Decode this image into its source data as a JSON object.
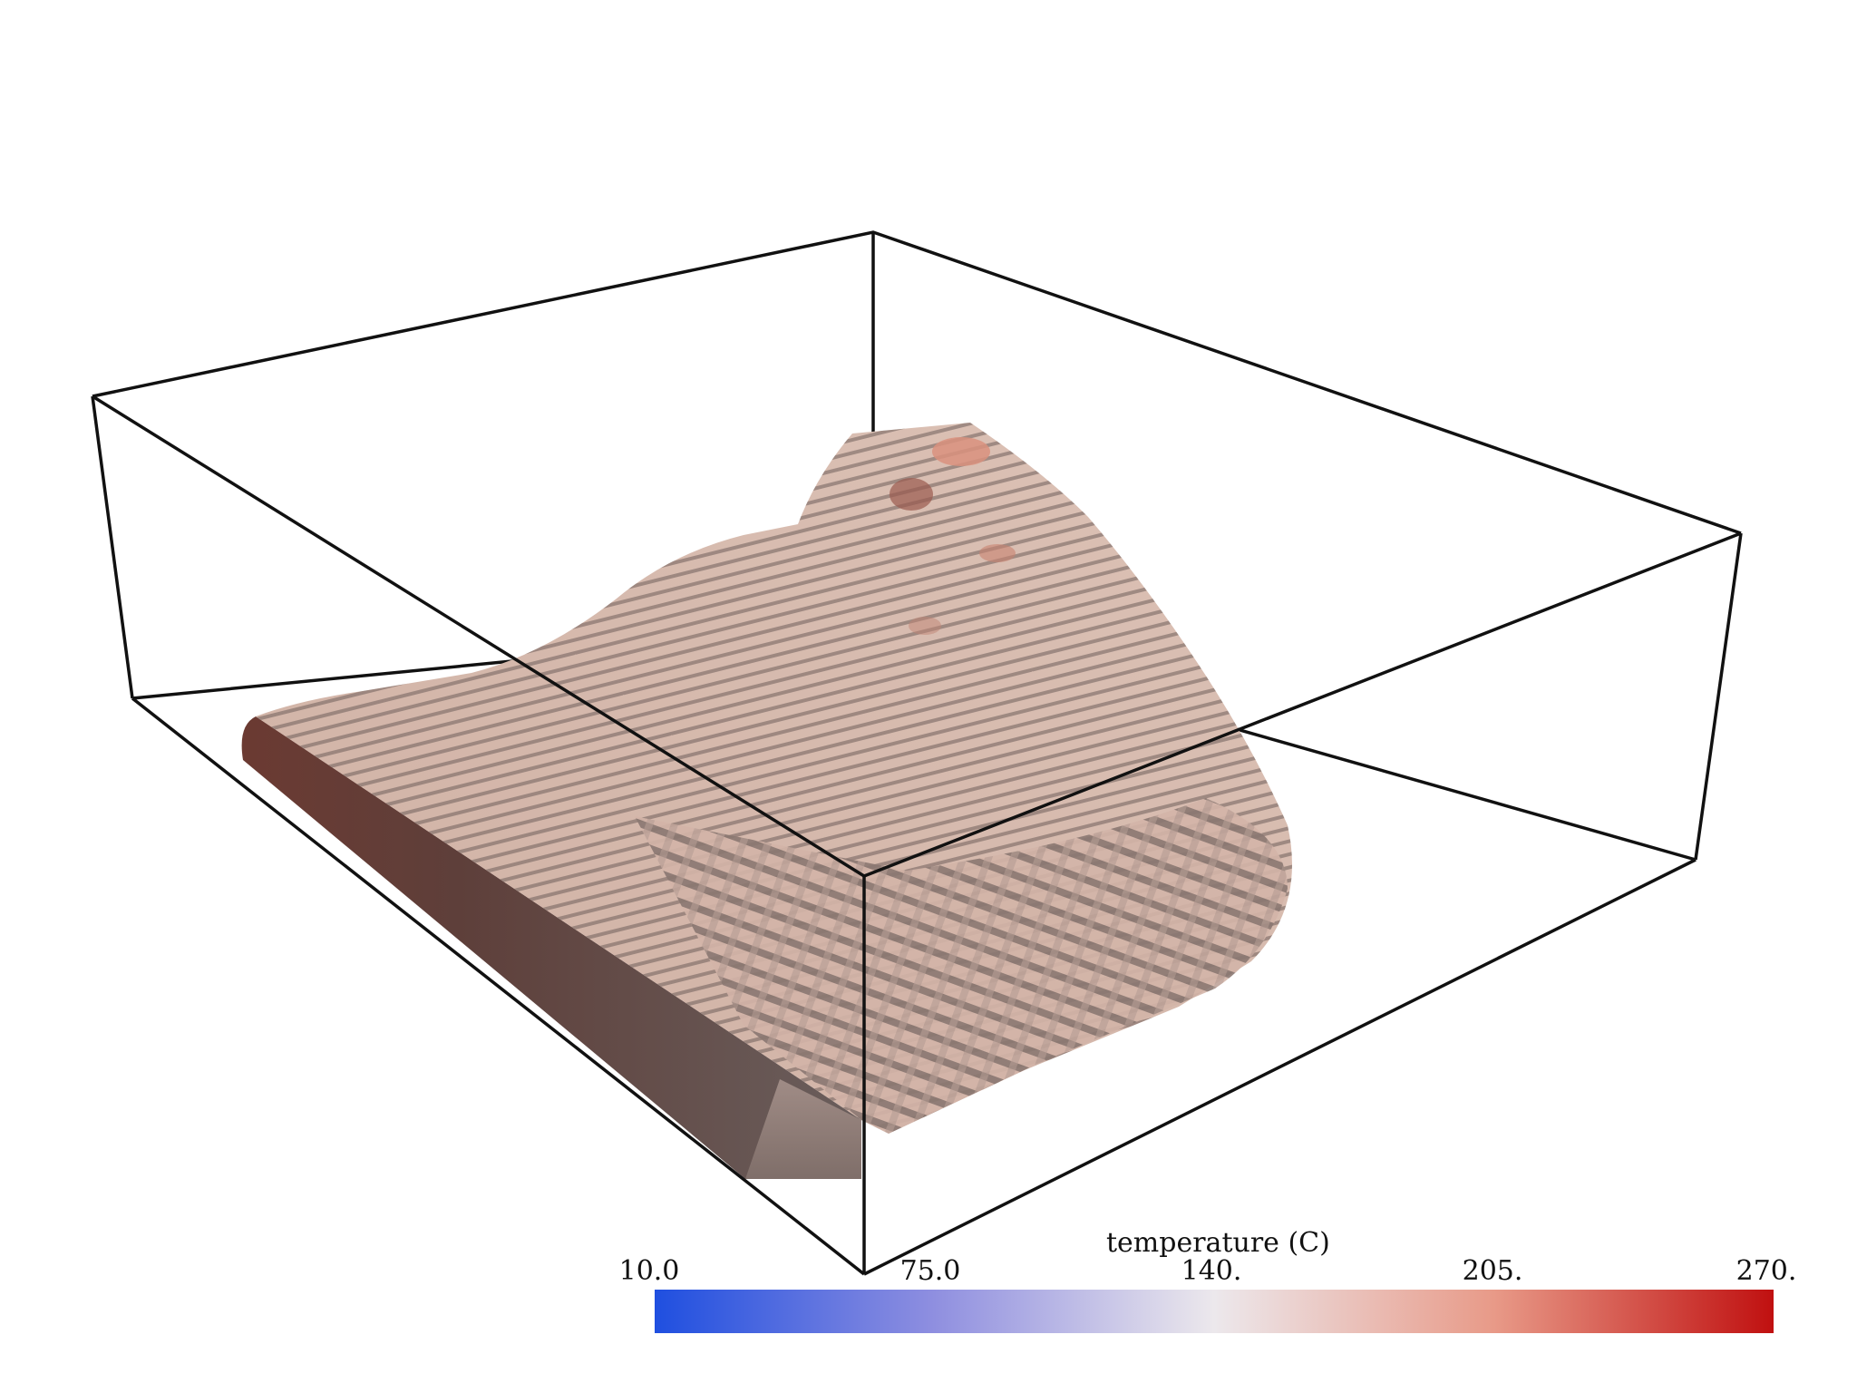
{
  "colorbar": {
    "title": "temperature (C)",
    "ticks": [
      "10.0",
      "75.0",
      "140.",
      "205.",
      "270."
    ],
    "colors": [
      "#1f4fe0",
      "#8f8fe0",
      "#ece8ec",
      "#e89a88",
      "#c01010"
    ]
  },
  "surface": {
    "lit_color": "#d5b6a9",
    "shadow_color": "#8e7a74",
    "hot_color": "#6b3a32"
  },
  "box": {
    "stroke": "#111111"
  }
}
